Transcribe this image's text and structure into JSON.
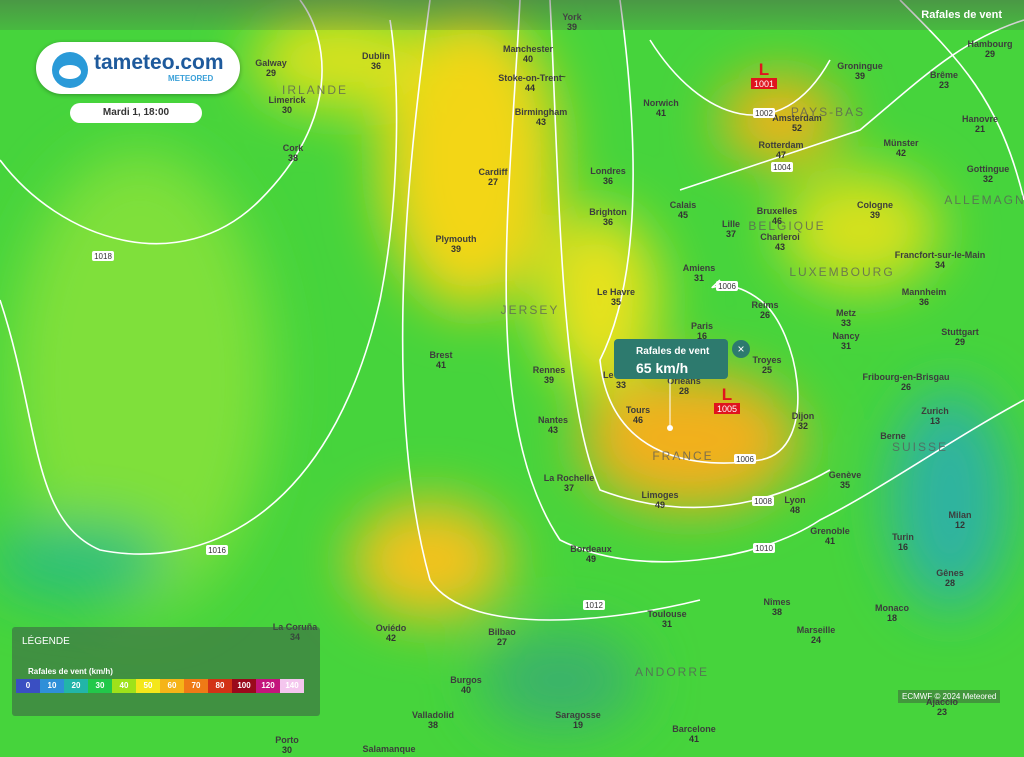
{
  "header": {
    "layer": "Rafales de vent"
  },
  "logo": {
    "brand": "tameteo.com",
    "sub": "METEORED"
  },
  "date": "Mardi 1, 18:00",
  "countries": [
    "IRLANDE",
    "PAYS-BAS",
    "BELGIQUE",
    "LUXEMBOURG",
    "ALLEMAGNE",
    "JERSEY",
    "FRANCE",
    "SUISSE",
    "ANDORRE"
  ],
  "cities": [
    {
      "name": "York",
      "value": 39
    },
    {
      "name": "Manchester",
      "value": 40
    },
    {
      "name": "Stoke-on-Trent",
      "value": 44
    },
    {
      "name": "Birmingham",
      "value": 43
    },
    {
      "name": "Norwich",
      "value": 41
    },
    {
      "name": "Londres",
      "value": 36
    },
    {
      "name": "Brighton",
      "value": 36
    },
    {
      "name": "Cardiff",
      "value": 27
    },
    {
      "name": "Plymouth",
      "value": 39
    },
    {
      "name": "Dublin",
      "value": 36
    },
    {
      "name": "Galway",
      "value": 29
    },
    {
      "name": "Limerick",
      "value": 30
    },
    {
      "name": "Cork",
      "value": 38
    },
    {
      "name": "Groningue",
      "value": 39
    },
    {
      "name": "Amsterdam",
      "value": 52
    },
    {
      "name": "Rotterdam",
      "value": 47
    },
    {
      "name": "Calais",
      "value": 45
    },
    {
      "name": "Bruxelles",
      "value": 46
    },
    {
      "name": "Lille",
      "value": 37
    },
    {
      "name": "Charleroi",
      "value": 43
    },
    {
      "name": "Amiens",
      "value": 31
    },
    {
      "name": "Le Havre",
      "value": 35
    },
    {
      "name": "Reims",
      "value": 26
    },
    {
      "name": "Paris",
      "value": 16
    },
    {
      "name": "Metz",
      "value": 33
    },
    {
      "name": "Nancy",
      "value": 31
    },
    {
      "name": "Troyes",
      "value": 25
    },
    {
      "name": "Brest",
      "value": 41
    },
    {
      "name": "Rennes",
      "value": 39
    },
    {
      "name": "Le Mans",
      "value": 33
    },
    {
      "name": "Orléans",
      "value": 28
    },
    {
      "name": "Tours",
      "value": 46
    },
    {
      "name": "Nantes",
      "value": 43
    },
    {
      "name": "Dijon",
      "value": 32
    },
    {
      "name": "La Rochelle",
      "value": 37
    },
    {
      "name": "Limoges",
      "value": 49
    },
    {
      "name": "Lyon",
      "value": 48
    },
    {
      "name": "Grenoble",
      "value": 41
    },
    {
      "name": "Genève",
      "value": 35
    },
    {
      "name": "Bordeaux",
      "value": 49
    },
    {
      "name": "Toulouse",
      "value": 31
    },
    {
      "name": "Nîmes",
      "value": 38
    },
    {
      "name": "Marseille",
      "value": 24
    },
    {
      "name": "Monaco",
      "value": 18
    },
    {
      "name": "Gênes",
      "value": 28
    },
    {
      "name": "Turin",
      "value": 16
    },
    {
      "name": "Milan",
      "value": 12
    },
    {
      "name": "Zurich",
      "value": 13
    },
    {
      "name": "Berne"
    },
    {
      "name": "Fribourg-en-Brisgau",
      "value": 26
    },
    {
      "name": "Stuttgart",
      "value": 29
    },
    {
      "name": "Mannheim",
      "value": 36
    },
    {
      "name": "Francfort-sur-le-Main",
      "value": 34
    },
    {
      "name": "Cologne",
      "value": 39
    },
    {
      "name": "Münster",
      "value": 42
    },
    {
      "name": "Gottingue",
      "value": 32
    },
    {
      "name": "Hanovre",
      "value": 21
    },
    {
      "name": "Brême",
      "value": 23
    },
    {
      "name": "Hambourg",
      "value": 29
    },
    {
      "name": "Oviédo",
      "value": 42
    },
    {
      "name": "La Coruña",
      "value": 34
    },
    {
      "name": "Bilbao",
      "value": 27
    },
    {
      "name": "Burgos",
      "value": 40
    },
    {
      "name": "Valladolid",
      "value": 38
    },
    {
      "name": "Saragosse",
      "value": 19
    },
    {
      "name": "Barcelone",
      "value": 41
    },
    {
      "name": "Porto",
      "value": 30
    },
    {
      "name": "Salamanque"
    },
    {
      "name": "Ajaccio",
      "value": 23
    }
  ],
  "isobars": [
    1018,
    1016,
    1012,
    1010,
    1008,
    1006,
    1006,
    1004,
    1002
  ],
  "lows": [
    {
      "letter": "L",
      "pressure": 1001
    },
    {
      "letter": "L",
      "pressure": 1005
    }
  ],
  "tooltip": {
    "title": "Rafales de vent",
    "value": "65 km/h"
  },
  "legend": {
    "title": "LÉGENDE",
    "subtitle": "Rafales de vent (km/h)",
    "stops": [
      {
        "value": 0,
        "color": "#3a4fc2"
      },
      {
        "value": 10,
        "color": "#2f8fd8"
      },
      {
        "value": 20,
        "color": "#22b5a8"
      },
      {
        "value": 30,
        "color": "#22c84a"
      },
      {
        "value": 40,
        "color": "#9ee21a"
      },
      {
        "value": 50,
        "color": "#f4e71a"
      },
      {
        "value": 60,
        "color": "#f5b418"
      },
      {
        "value": 70,
        "color": "#ef7a16"
      },
      {
        "value": 80,
        "color": "#d23216"
      },
      {
        "value": 100,
        "color": "#9a0a1c"
      },
      {
        "value": 120,
        "color": "#c4157c"
      },
      {
        "value": 140,
        "color": "#f4c6ee"
      }
    ]
  },
  "credit": "ECMWF © 2024 Meteored"
}
